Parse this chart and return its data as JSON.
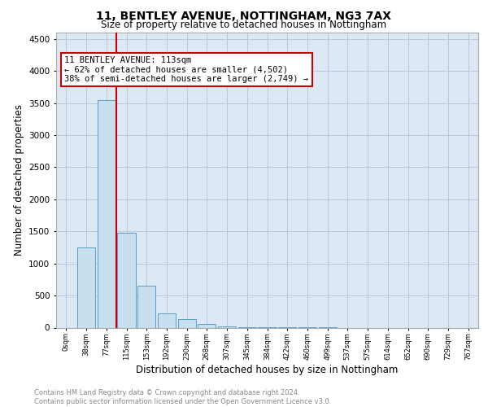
{
  "title": "11, BENTLEY AVENUE, NOTTINGHAM, NG3 7AX",
  "subtitle": "Size of property relative to detached houses in Nottingham",
  "xlabel": "Distribution of detached houses by size in Nottingham",
  "ylabel": "Number of detached properties",
  "footer_line1": "Contains HM Land Registry data © Crown copyright and database right 2024.",
  "footer_line2": "Contains public sector information licensed under the Open Government Licence v3.0.",
  "property_size_bin": 2,
  "property_label": "11 BENTLEY AVENUE: 113sqm",
  "annotation_line1": "← 62% of detached houses are smaller (4,502)",
  "annotation_line2": "38% of semi-detached houses are larger (2,749) →",
  "bar_color": "#c8dff0",
  "bar_edge_color": "#5a9dc8",
  "marker_color": "#cc0000",
  "annotation_box_color": "#cc0000",
  "bin_labels": [
    "0sqm",
    "38sqm",
    "77sqm",
    "115sqm",
    "153sqm",
    "192sqm",
    "230sqm",
    "268sqm",
    "307sqm",
    "345sqm",
    "384sqm",
    "422sqm",
    "460sqm",
    "499sqm",
    "537sqm",
    "575sqm",
    "614sqm",
    "652sqm",
    "690sqm",
    "729sqm",
    "767sqm"
  ],
  "counts": [
    0,
    1250,
    3550,
    1480,
    650,
    220,
    130,
    60,
    20,
    10,
    5,
    3,
    2,
    1,
    0,
    0,
    0,
    0,
    0,
    0,
    0
  ],
  "ylim": [
    0,
    4600
  ],
  "yticks": [
    0,
    500,
    1000,
    1500,
    2000,
    2500,
    3000,
    3500,
    4000,
    4500
  ],
  "background_color": "#ffffff",
  "plot_bg_color": "#dde8f5",
  "grid_color": "#b8c8dc"
}
